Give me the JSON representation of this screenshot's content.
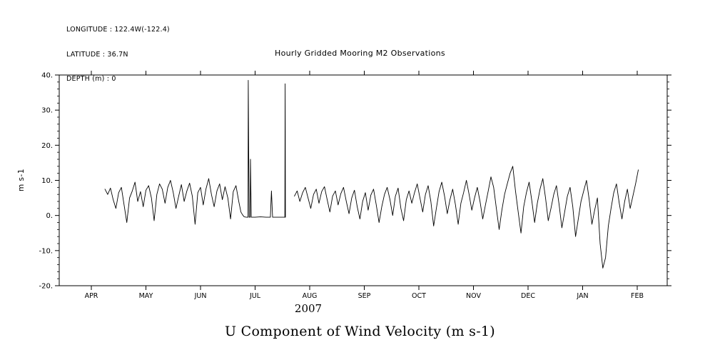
{
  "header": {
    "longitude": "LONGITUDE : 122.4W(-122.4)",
    "latitude": "LATITUDE : 36.7N",
    "depth": "DEPTH (m) : 0"
  },
  "chart_data": {
    "type": "line",
    "title": "Hourly Gridded Mooring M2 Observations",
    "xlabel": "2007",
    "ylabel": "m s-1",
    "bottom_title": "U Component of Wind Velocity (m s-1)",
    "grid": false,
    "legend": "none",
    "line_color": "#000000",
    "ylim": [
      -20,
      40
    ],
    "y_tick_values": [
      40,
      30,
      20,
      10,
      0,
      -10,
      -20
    ],
    "y_tick_labels": [
      "40.",
      "30.",
      "20.",
      "10.",
      "0.",
      "-10.",
      "-20."
    ],
    "y_minor_step": 2,
    "x_tick_labels": [
      "APR",
      "MAY",
      "JUN",
      "JUL",
      "AUG",
      "SEP",
      "OCT",
      "NOV",
      "DEC",
      "JAN",
      "FEB"
    ],
    "x_axis_note": "months APR 2007 through FEB 2008, data begins mid-APR, flat bad-data span with spikes to 38.5 and 37.5 in JUL, short gap, dip to -15 in late JAN",
    "series": [
      {
        "name": "u-component-wind-velocity",
        "units": "m s-1",
        "segments": [
          {
            "parts": [
              {
                "t0": 0.25,
                "dt": 0.05,
                "values": [
                  7.5,
                  6.0,
                  7.8,
                  4.5,
                  2.0,
                  6.5,
                  8.0,
                  3.0,
                  -2.0,
                  5.0,
                  7.0,
                  9.5,
                  4.0,
                  6.8,
                  2.5,
                  7.2,
                  8.5,
                  5.0,
                  -1.5,
                  6.0,
                  9.0,
                  7.5,
                  3.5,
                  8.0,
                  10.0,
                  6.5,
                  2.0,
                  5.5,
                  8.8,
                  4.0,
                  7.0,
                  9.2,
                  5.5,
                  -2.5,
                  6.5,
                  8.0,
                  3.0,
                  7.5,
                  10.5,
                  6.0,
                  2.5,
                  7.0,
                  9.0,
                  4.5,
                  8.2,
                  5.0,
                  -1.0,
                  6.8,
                  8.5,
                  4.0
                ]
              },
              {
                "points": [
                  [
                    2.74,
                    1.0
                  ],
                  [
                    2.77,
                    0.2
                  ],
                  [
                    2.8,
                    -0.4
                  ],
                  [
                    2.84,
                    -0.5
                  ],
                  [
                    2.87,
                    -0.5
                  ],
                  [
                    2.875,
                    38.5
                  ],
                  [
                    2.89,
                    -0.5
                  ],
                  [
                    2.91,
                    -0.5
                  ],
                  [
                    2.915,
                    16.0
                  ],
                  [
                    2.93,
                    -0.5
                  ],
                  [
                    3.0,
                    -0.5
                  ],
                  [
                    3.1,
                    -0.4
                  ],
                  [
                    3.2,
                    -0.5
                  ],
                  [
                    3.28,
                    -0.5
                  ],
                  [
                    3.3,
                    7.0
                  ],
                  [
                    3.32,
                    -0.5
                  ],
                  [
                    3.4,
                    -0.5
                  ],
                  [
                    3.5,
                    -0.5
                  ],
                  [
                    3.545,
                    -0.5
                  ],
                  [
                    3.55,
                    37.5
                  ],
                  [
                    3.555,
                    -0.5
                  ]
                ]
              }
            ]
          },
          {
            "parts": [
              {
                "t0": 3.72,
                "dt": 0.05,
                "values": [
                  5.5,
                  7.0,
                  4.0,
                  6.5,
                  8.0,
                  5.0,
                  2.0,
                  6.0,
                  7.5,
                  3.5,
                  6.8,
                  8.2,
                  4.5,
                  1.0,
                  5.5,
                  7.0,
                  3.0,
                  6.2,
                  8.0,
                  4.0,
                  0.5,
                  5.0,
                  7.2,
                  2.5,
                  -1.0,
                  4.0,
                  6.5,
                  1.5,
                  5.8,
                  7.5,
                  3.0,
                  -2.0,
                  2.5,
                  6.0,
                  8.0,
                  4.5,
                  0.0,
                  5.5,
                  7.8,
                  2.0,
                  -1.5,
                  4.5,
                  7.0,
                  3.5,
                  6.5,
                  9.0,
                  5.0,
                  1.0,
                  6.0,
                  8.5,
                  4.0,
                  -3.0,
                  2.0,
                  6.8,
                  9.5,
                  5.5,
                  0.5,
                  4.5,
                  7.5,
                  3.0,
                  -2.5,
                  3.5,
                  6.5,
                  10.0,
                  6.0,
                  1.5,
                  5.0,
                  8.0,
                  4.0,
                  -1.0,
                  3.0,
                  7.0,
                  11.0,
                  8.0,
                  2.0,
                  -4.0,
                  1.5,
                  6.0,
                  9.0,
                  12.0,
                  14.0,
                  7.0,
                  1.0,
                  -5.0,
                  2.5,
                  6.5,
                  9.5,
                  4.0,
                  -2.0,
                  3.5,
                  7.5,
                  10.5,
                  5.0,
                  -1.5,
                  2.0,
                  6.0,
                  8.5,
                  3.0,
                  -3.5,
                  1.0,
                  5.5,
                  8.0,
                  2.5,
                  -6.0,
                  -1.0,
                  4.0,
                  7.0,
                  10.0,
                  4.5,
                  -2.5,
                  1.5,
                  5.0,
                  -8.0,
                  -15.0,
                  -12.0,
                  -3.0,
                  2.0,
                  6.5,
                  9.0,
                  3.5,
                  -1.0,
                  4.0,
                  7.5,
                  2.0,
                  5.5,
                  9.0,
                  13.0
                ]
              }
            ]
          }
        ]
      }
    ]
  }
}
